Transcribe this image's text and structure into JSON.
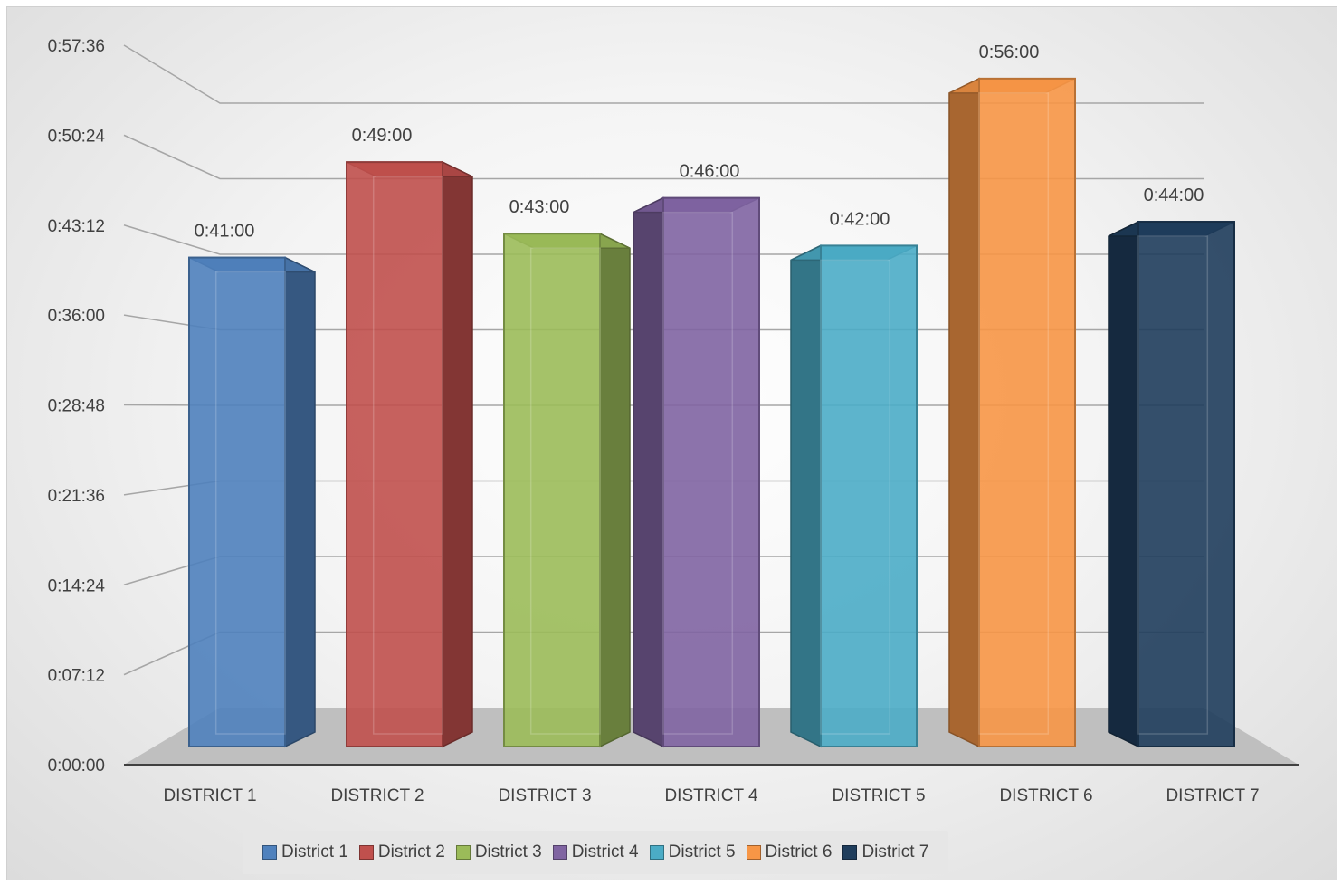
{
  "chart_data": {
    "type": "bar",
    "title": "",
    "xlabel": "",
    "ylabel": "",
    "categories": [
      "DISTRICT 1",
      "DISTRICT 2",
      "DISTRICT 3",
      "DISTRICT 4",
      "DISTRICT 5",
      "DISTRICT 6",
      "DISTRICT 7"
    ],
    "values": [
      "0:41:00",
      "0:49:00",
      "0:43:00",
      "0:46:00",
      "0:42:00",
      "0:56:00",
      "0:44:00"
    ],
    "y_ticks": [
      "0:00:00",
      "0:07:12",
      "0:14:24",
      "0:21:36",
      "0:28:48",
      "0:36:00",
      "0:43:12",
      "0:50:24",
      "0:57:36"
    ],
    "ylim": [
      "0:00:00",
      "0:57:36"
    ],
    "grid": true,
    "legend_position": "bottom",
    "legend": [
      "District 1",
      "District 2",
      "District 3",
      "District 4",
      "District 5",
      "District 6",
      "District 7"
    ],
    "colors": [
      "#4f81bd",
      "#c0504d",
      "#9bbb59",
      "#8064a2",
      "#4bacc6",
      "#f79646",
      "#1f3d5c"
    ]
  }
}
